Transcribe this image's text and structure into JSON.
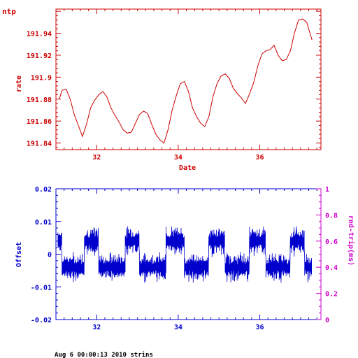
{
  "header": {
    "title": "ntp",
    "title_color": "#cc0000"
  },
  "footer": {
    "text": "Aug  6 00:00:13 2010 strins"
  },
  "chart_data": [
    {
      "type": "line",
      "color": "#cc0000",
      "xlabel": "Date",
      "ylabel": "rate",
      "xlim": [
        31.0,
        37.5
      ],
      "ylim": [
        191.834,
        191.962
      ],
      "x_ticks": [
        32,
        34,
        36
      ],
      "y_ticks": [
        191.84,
        191.86,
        191.88,
        191.9,
        191.92,
        191.94
      ],
      "y_tick_labels": [
        "191.84",
        "191.86",
        "191.88",
        "191.9",
        "191.92",
        "191.94"
      ],
      "series": [
        {
          "x": [
            31.08,
            31.15,
            31.25,
            31.35,
            31.45,
            31.55,
            31.65,
            31.75,
            31.85,
            31.95,
            32.05,
            32.15,
            32.25,
            32.35,
            32.45,
            32.55,
            32.65,
            32.75,
            32.85,
            32.95,
            33.05,
            33.15,
            33.25,
            33.35,
            33.45,
            33.55,
            33.65,
            33.75,
            33.85,
            33.95,
            34.05,
            34.15,
            34.25,
            34.35,
            34.45,
            34.55,
            34.65,
            34.75,
            34.85,
            34.95,
            35.05,
            35.15,
            35.25,
            35.35,
            35.45,
            35.55,
            35.65,
            35.75,
            35.85,
            35.95,
            36.05,
            36.15,
            36.25,
            36.35,
            36.45,
            36.55,
            36.65,
            36.75,
            36.85,
            36.95,
            37.05,
            37.15,
            37.28
          ],
          "y": [
            191.88,
            191.888,
            191.889,
            191.88,
            191.866,
            191.856,
            191.846,
            191.857,
            191.872,
            191.879,
            191.884,
            191.887,
            191.882,
            191.872,
            191.865,
            191.859,
            191.852,
            191.849,
            191.85,
            191.858,
            191.866,
            191.869,
            191.867,
            191.857,
            191.848,
            191.843,
            191.84,
            191.852,
            191.87,
            191.883,
            191.894,
            191.896,
            191.887,
            191.872,
            191.864,
            191.858,
            191.855,
            191.864,
            191.882,
            191.894,
            191.901,
            191.903,
            191.899,
            191.89,
            191.885,
            191.881,
            191.876,
            191.885,
            191.895,
            191.91,
            191.921,
            191.924,
            191.925,
            191.929,
            191.92,
            191.915,
            191.916,
            191.924,
            191.94,
            191.952,
            191.953,
            191.95,
            191.934
          ]
        }
      ]
    },
    {
      "type": "line",
      "color": "#0000cc",
      "right_axis_color": "#cc00cc",
      "xlabel": "",
      "ylabel": "Offset",
      "y2label": "rnd-trip(ms)",
      "xlim": [
        31.0,
        37.5
      ],
      "ylim": [
        -0.02,
        0.02
      ],
      "y2lim": [
        0,
        1
      ],
      "x_ticks": [
        32,
        34,
        36
      ],
      "y_ticks": [
        -0.02,
        -0.01,
        0,
        0.01,
        0.02
      ],
      "y_tick_labels": [
        "-0.02",
        "-0.01",
        "0",
        "0.01",
        "0.02"
      ],
      "y2_ticks": [
        0,
        0.2,
        0.4,
        0.6,
        0.8,
        1
      ],
      "y2_tick_labels": [
        "0",
        "0.2",
        "0.4",
        "0.6",
        "0.8",
        "1"
      ],
      "series": [
        {
          "name": "offset",
          "segments": [
            {
              "x0": 31.05,
              "x1": 31.15,
              "y": 0.004
            },
            {
              "x0": 31.15,
              "x1": 31.7,
              "y": -0.004
            },
            {
              "x0": 31.7,
              "x1": 32.05,
              "y": 0.004
            },
            {
              "x0": 32.05,
              "x1": 32.7,
              "y": -0.004
            },
            {
              "x0": 32.7,
              "x1": 33.05,
              "y": 0.004
            },
            {
              "x0": 33.05,
              "x1": 33.7,
              "y": -0.004
            },
            {
              "x0": 33.7,
              "x1": 34.15,
              "y": 0.004
            },
            {
              "x0": 34.15,
              "x1": 34.75,
              "y": -0.004
            },
            {
              "x0": 34.75,
              "x1": 35.15,
              "y": 0.004
            },
            {
              "x0": 35.15,
              "x1": 35.75,
              "y": -0.004
            },
            {
              "x0": 35.75,
              "x1": 36.15,
              "y": 0.004
            },
            {
              "x0": 36.15,
              "x1": 36.75,
              "y": -0.004
            },
            {
              "x0": 36.75,
              "x1": 37.1,
              "y": 0.004
            },
            {
              "x0": 37.1,
              "x1": 37.28,
              "y": -0.004
            }
          ]
        }
      ]
    }
  ]
}
